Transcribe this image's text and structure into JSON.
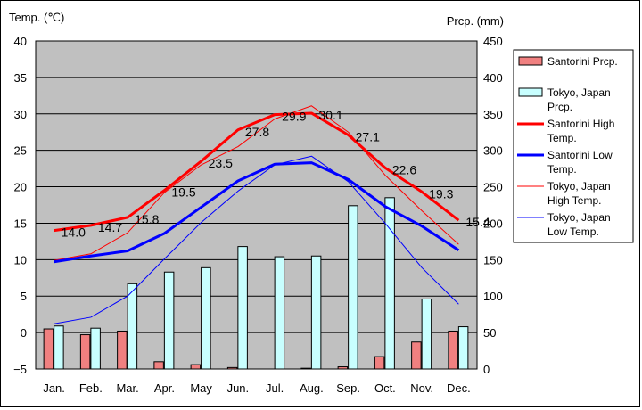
{
  "chart_data": {
    "type": "bar+line",
    "categories": [
      "Jan.",
      "Feb.",
      "Mar.",
      "Apr.",
      "May",
      "Jun.",
      "Jul.",
      "Aug.",
      "Sep.",
      "Oct.",
      "Nov.",
      "Dec."
    ],
    "left_axis": {
      "label": "Temp. (℃)",
      "min": -5,
      "max": 40,
      "step": 5,
      "ticks": [
        "40",
        "35",
        "30",
        "25",
        "20",
        "15",
        "10",
        "5",
        "0",
        "−5"
      ]
    },
    "right_axis": {
      "label": "Prcp. (mm)",
      "min": 0,
      "max": 450,
      "step": 50,
      "ticks": [
        "450",
        "400",
        "350",
        "300",
        "250",
        "200",
        "150",
        "100",
        "50",
        "0"
      ]
    },
    "grid": true,
    "legend_position": "right",
    "series": [
      {
        "key": "s_prcp",
        "name": "Santorini Prcp.",
        "kind": "bar",
        "axis": "right",
        "color": "#f08080",
        "values": [
          55,
          47,
          52,
          10,
          6,
          2,
          0,
          1,
          3,
          17,
          37,
          52
        ]
      },
      {
        "key": "t_prcp",
        "name": "Tokyo, Japan Prcp.",
        "kind": "bar",
        "axis": "right",
        "color": "#c8ffff",
        "values": [
          59,
          56,
          117,
          133,
          139,
          168,
          154,
          155,
          224,
          235,
          96,
          58
        ]
      },
      {
        "key": "s_high",
        "name": "Santorini High Temp.",
        "kind": "line",
        "axis": "left",
        "color": "#ff0000",
        "width": 3,
        "values": [
          14.0,
          14.7,
          15.8,
          19.5,
          23.5,
          27.8,
          29.9,
          30.1,
          27.1,
          22.6,
          19.3,
          15.4
        ]
      },
      {
        "key": "s_low",
        "name": "Santorini Low Temp.",
        "kind": "line",
        "axis": "left",
        "color": "#0000ff",
        "width": 3,
        "values": [
          9.7,
          10.5,
          11.2,
          13.6,
          17.2,
          20.8,
          23.1,
          23.3,
          21.0,
          17.3,
          14.6,
          11.3
        ]
      },
      {
        "key": "t_high",
        "name": "Tokyo, Japan High Temp.",
        "kind": "line",
        "axis": "left",
        "color": "#ff0000",
        "width": 1,
        "values": [
          9.9,
          10.8,
          13.7,
          19.2,
          23.0,
          25.5,
          29.3,
          31.1,
          27.5,
          21.6,
          16.7,
          12.1
        ]
      },
      {
        "key": "t_low",
        "name": "Tokyo, Japan Low Temp.",
        "kind": "line",
        "axis": "left",
        "color": "#0000ff",
        "width": 1,
        "values": [
          1.2,
          2.1,
          5.0,
          10.1,
          15.1,
          19.4,
          23.0,
          24.2,
          20.7,
          15.0,
          8.9,
          3.9
        ]
      }
    ],
    "data_labels": {
      "series": "s_high",
      "texts": [
        "14.0",
        "14.7",
        "15.8",
        "19.5",
        "23.5",
        "27.8",
        "29.9",
        "30.1",
        "27.1",
        "22.6",
        "19.3",
        "15.4"
      ]
    }
  }
}
